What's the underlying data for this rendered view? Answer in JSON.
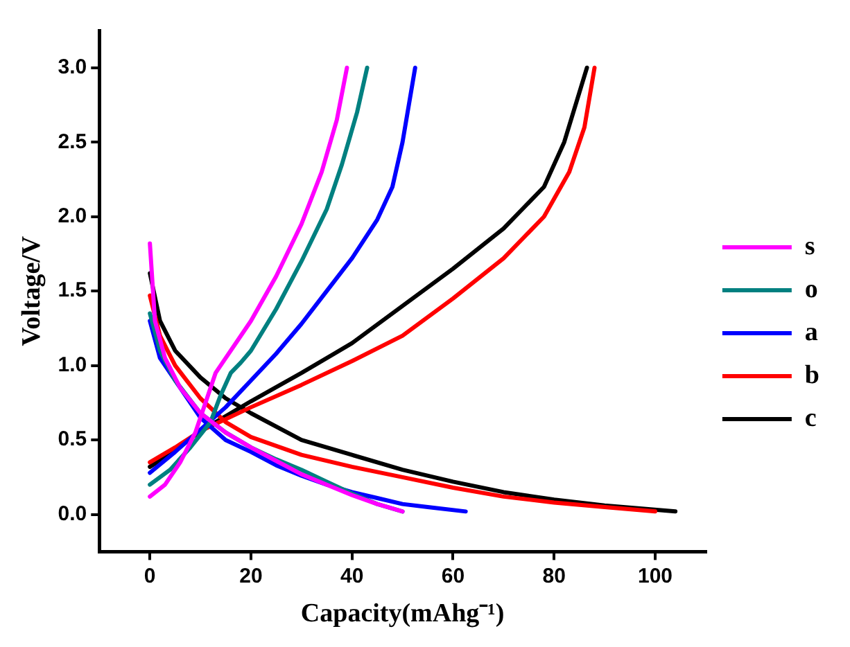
{
  "chart_data": {
    "type": "line",
    "xlabel": "Capacity(mAhg⁻¹)",
    "ylabel": "Voltage/V",
    "xlim": [
      -10,
      110
    ],
    "ylim": [
      -0.25,
      3.25
    ],
    "xticks": [
      0,
      20,
      40,
      60,
      80,
      100
    ],
    "yticks": [
      {
        "value": 0,
        "label": "0.0"
      },
      {
        "value": 0.5,
        "label": "0.5"
      },
      {
        "value": 1,
        "label": "1.0"
      },
      {
        "value": 1.5,
        "label": "1.5"
      },
      {
        "value": 2,
        "label": "2.0"
      },
      {
        "value": 2.5,
        "label": "2.5"
      },
      {
        "value": 3,
        "label": "3.0"
      }
    ],
    "grid": false,
    "legend": "right",
    "marker": "none",
    "line_style": "solid",
    "series": [
      {
        "name": "s",
        "color": "#ff00ff",
        "x": [
          0,
          1,
          3,
          6,
          10,
          15,
          20,
          25,
          30,
          35,
          40,
          45,
          50,
          null,
          0,
          3,
          6,
          9,
          11,
          13,
          15,
          20,
          25,
          30,
          34,
          37,
          39
        ],
        "values": [
          1.82,
          1.3,
          1.05,
          0.85,
          0.68,
          0.55,
          0.45,
          0.36,
          0.27,
          0.2,
          0.13,
          0.07,
          0.02,
          null,
          0.12,
          0.2,
          0.35,
          0.55,
          0.75,
          0.95,
          1.05,
          1.3,
          1.6,
          1.95,
          2.3,
          2.65,
          3.0
        ]
      },
      {
        "name": "o",
        "color": "#008080",
        "x": [
          0,
          2,
          5,
          10,
          15,
          20,
          25,
          30,
          35,
          40,
          45,
          50,
          null,
          0,
          4,
          8,
          12,
          14,
          16,
          18,
          20,
          25,
          30,
          35,
          38,
          41,
          43
        ],
        "values": [
          1.35,
          1.1,
          0.9,
          0.68,
          0.55,
          0.45,
          0.37,
          0.3,
          0.22,
          0.14,
          0.07,
          0.02,
          null,
          0.2,
          0.3,
          0.45,
          0.62,
          0.8,
          0.95,
          1.02,
          1.1,
          1.38,
          1.7,
          2.05,
          2.35,
          2.7,
          3.0
        ]
      },
      {
        "name": "a",
        "color": "#0000ff",
        "x": [
          0,
          2,
          5,
          10,
          15,
          20,
          25,
          30,
          35,
          40,
          45,
          50,
          55,
          62.5,
          null,
          0,
          5,
          10,
          15,
          20,
          25,
          30,
          35,
          40,
          45,
          48,
          50,
          52.5
        ],
        "values": [
          1.3,
          1.05,
          0.9,
          0.65,
          0.5,
          0.42,
          0.33,
          0.26,
          0.2,
          0.15,
          0.11,
          0.07,
          0.05,
          0.02,
          null,
          0.28,
          0.42,
          0.57,
          0.72,
          0.9,
          1.08,
          1.28,
          1.5,
          1.72,
          1.98,
          2.2,
          2.5,
          3.0
        ]
      },
      {
        "name": "b",
        "color": "#ff0000",
        "x": [
          0,
          2,
          5,
          10,
          15,
          20,
          30,
          40,
          50,
          60,
          70,
          80,
          90,
          100,
          null,
          0,
          5,
          10,
          20,
          30,
          40,
          50,
          60,
          70,
          78,
          83,
          86,
          88
        ],
        "values": [
          1.47,
          1.2,
          1.0,
          0.78,
          0.62,
          0.52,
          0.4,
          0.32,
          0.25,
          0.18,
          0.12,
          0.08,
          0.05,
          0.02,
          null,
          0.35,
          0.45,
          0.56,
          0.72,
          0.87,
          1.03,
          1.2,
          1.45,
          1.72,
          2.0,
          2.3,
          2.6,
          3.0
        ]
      },
      {
        "name": "c",
        "color": "#000000",
        "x": [
          0,
          2,
          5,
          10,
          15,
          20,
          30,
          40,
          50,
          60,
          70,
          80,
          90,
          104,
          null,
          0,
          5,
          10,
          20,
          30,
          40,
          50,
          60,
          70,
          78,
          82,
          86.5
        ],
        "values": [
          1.62,
          1.3,
          1.1,
          0.92,
          0.78,
          0.68,
          0.5,
          0.4,
          0.3,
          0.22,
          0.15,
          0.1,
          0.06,
          0.02,
          null,
          0.32,
          0.43,
          0.56,
          0.76,
          0.95,
          1.15,
          1.4,
          1.65,
          1.92,
          2.2,
          2.5,
          3.0
        ]
      }
    ]
  }
}
